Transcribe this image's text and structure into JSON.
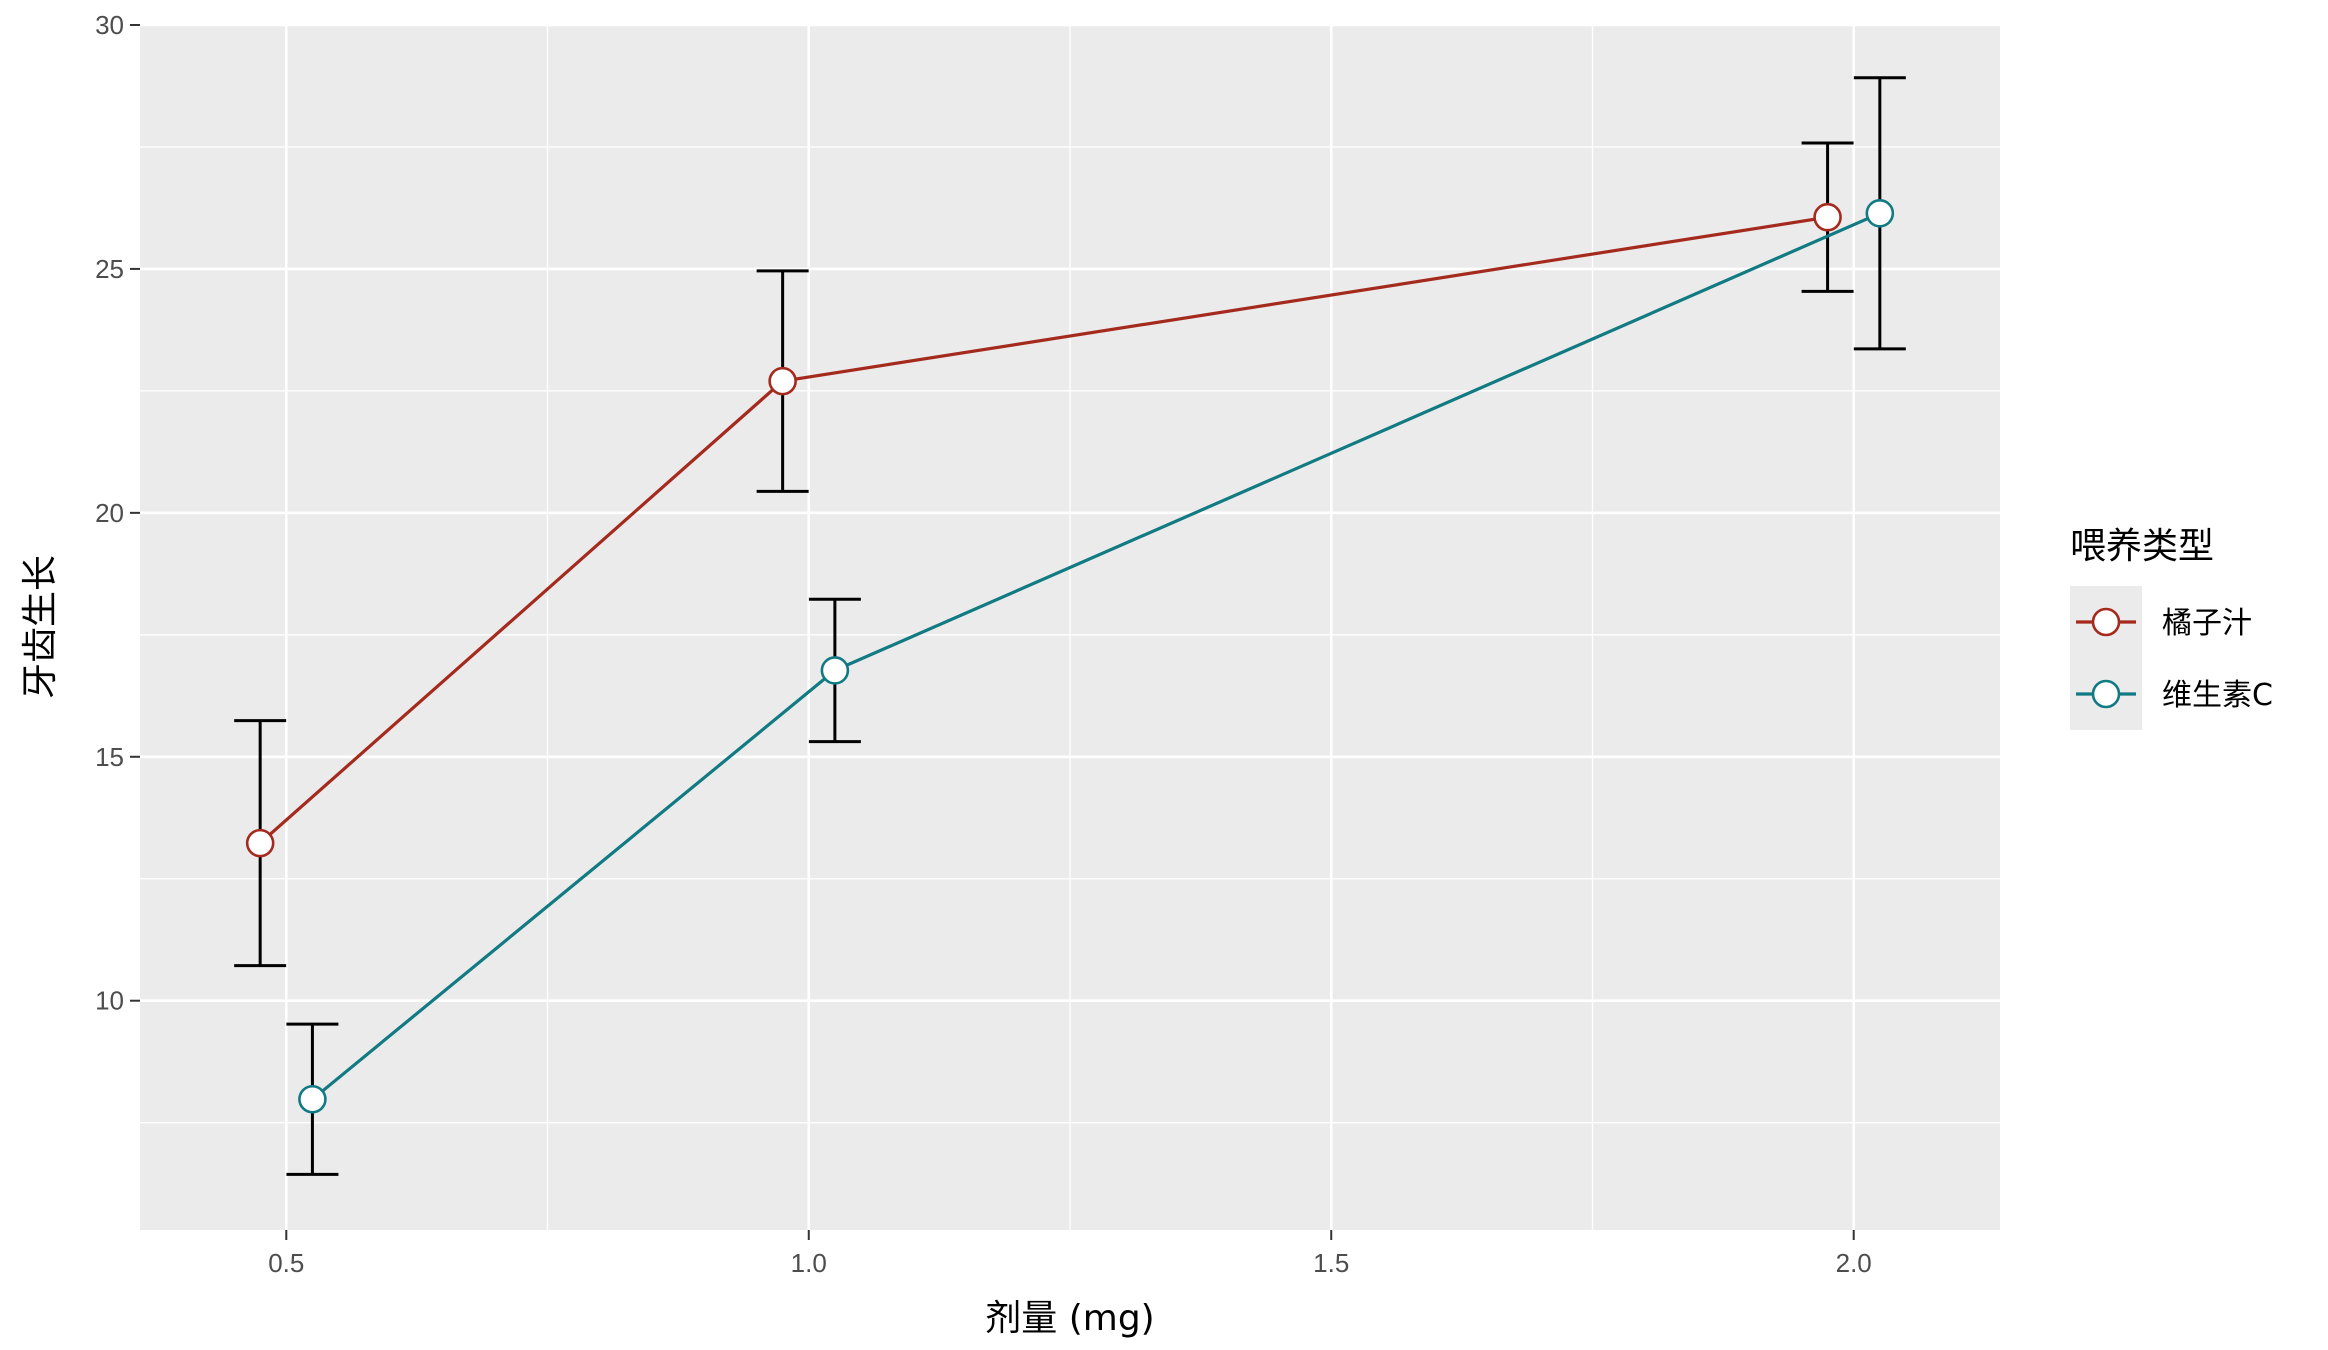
{
  "chart_data": {
    "type": "line",
    "xlabel": "剂量 (mg)",
    "ylabel": "牙齿生长",
    "xlim": [
      0.36,
      2.14
    ],
    "ylim": [
      5.3,
      30
    ],
    "x_ticks": [
      0.5,
      1.0,
      1.5,
      2.0
    ],
    "x_tick_labels": [
      "0.5",
      "1.0",
      "1.5",
      "2.0"
    ],
    "y_ticks": [
      10,
      15,
      20,
      25,
      30
    ],
    "y_tick_labels": [
      "10",
      "15",
      "20",
      "25",
      "30"
    ],
    "grid": true,
    "dodge": 0.025,
    "legend": {
      "title": "喂养类型",
      "placement": "right"
    },
    "series": [
      {
        "name": "橘子汁",
        "color": "#a52a1e",
        "x": [
          0.5,
          1.0,
          2.0
        ],
        "y": [
          13.23,
          22.7,
          26.06
        ],
        "err_low": [
          10.72,
          20.44,
          24.54
        ],
        "err_high": [
          15.74,
          24.96,
          27.58
        ]
      },
      {
        "name": "维生素C",
        "color": "#117a82",
        "x": [
          0.5,
          1.0,
          2.0
        ],
        "y": [
          7.98,
          16.77,
          26.14
        ],
        "err_low": [
          6.44,
          15.31,
          23.36
        ],
        "err_high": [
          9.52,
          18.23,
          28.92
        ]
      }
    ]
  }
}
